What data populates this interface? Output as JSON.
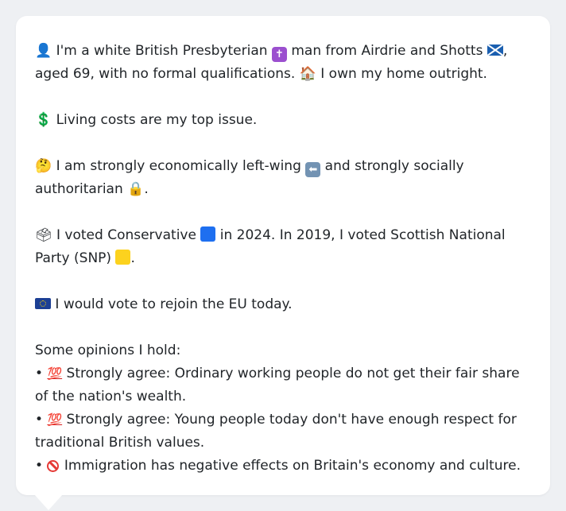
{
  "profile": {
    "identity": {
      "person_icon": "👤",
      "text_a": " I'm a white British Presbyterian ",
      "cross_icon": "✝",
      "text_b": " man from Airdrie and Shotts ",
      "text_c": ", aged 69, with no formal qualifications. ",
      "house_icon": "🏠",
      "text_d": " I own my home outright."
    },
    "issue": {
      "dollar_icon": "💲",
      "text": " Living costs are my top issue."
    },
    "ideology": {
      "thinking_icon": "🤔",
      "text_a": " I am strongly economically left-wing ",
      "left_arrow_icon": "⬅",
      "text_b": " and strongly socially authoritarian ",
      "lock_icon": "🔒",
      "text_c": "."
    },
    "votes": {
      "ballot_icon": "🗳",
      "text_a": " I voted Conservative ",
      "text_b": " in 2024. In 2019, I voted Scottish National Party (SNP) ",
      "text_c": "."
    },
    "eu": {
      "text": " I would vote to rejoin the EU today."
    },
    "opinions": {
      "heading": "Some opinions I hold:",
      "items": [
        {
          "bullet": "•",
          "icon": "💯",
          "text": " Strongly agree: Ordinary working people do not get their fair share of the nation's wealth."
        },
        {
          "bullet": "•",
          "icon": "💯",
          "text": " Strongly agree: Young people today don't have enough respect for traditional British values."
        },
        {
          "bullet": "•",
          "icon": "🚫",
          "text": " Immigration has negative effects on Britain's economy and culture."
        }
      ]
    }
  },
  "colors": {
    "background": "#eef0f3",
    "card": "#ffffff",
    "text": "#212529",
    "conservative_blue": "#1e6ff0",
    "snp_yellow": "#fcd21e",
    "cross_purple": "#9b4fcf",
    "arrow_blue_grey": "#7393b3"
  }
}
